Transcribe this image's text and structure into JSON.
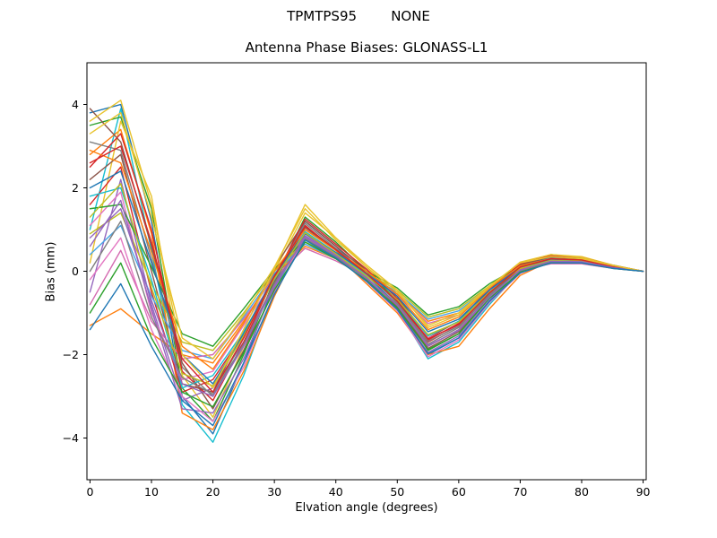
{
  "chart_data": {
    "type": "line",
    "suptitle": "TPMTPS95        NONE",
    "title": "Antenna Phase Biases: GLONASS-L1",
    "xlabel": "Elvation angle (degrees)",
    "ylabel": "Bias (mm)",
    "xlim": [
      -0.5,
      90.5
    ],
    "ylim": [
      -5,
      5
    ],
    "xticks": [
      0,
      10,
      20,
      30,
      40,
      50,
      60,
      70,
      80,
      90
    ],
    "yticks": [
      -4,
      -2,
      0,
      2,
      4
    ],
    "grid": false,
    "legend_position": "none",
    "x": [
      0,
      5,
      10,
      15,
      20,
      25,
      30,
      35,
      40,
      45,
      50,
      55,
      60,
      65,
      70,
      75,
      80,
      85,
      90
    ],
    "series": [
      {
        "color": "#1f77b4",
        "values": [
          3.8,
          4.0,
          1.2,
          -3.0,
          -3.9,
          -2.2,
          -0.3,
          1.2,
          0.6,
          -0.1,
          -0.8,
          -2.0,
          -1.6,
          -0.7,
          0.1,
          0.35,
          0.3,
          0.12,
          0
        ]
      },
      {
        "color": "#17becf",
        "values": [
          1.0,
          3.9,
          0.5,
          -3.2,
          -4.1,
          -2.5,
          -0.5,
          1.0,
          0.5,
          -0.2,
          -0.9,
          -2.1,
          -1.7,
          -0.8,
          0,
          0.3,
          0.28,
          0.1,
          0
        ]
      },
      {
        "color": "#2ca02c",
        "values": [
          3.5,
          3.7,
          1.5,
          -2.8,
          -3.6,
          -2.0,
          -0.2,
          1.3,
          0.7,
          0,
          -0.7,
          -1.9,
          -1.5,
          -0.6,
          0.15,
          0.4,
          0.32,
          0.15,
          0
        ]
      },
      {
        "color": "#ff7f0e",
        "values": [
          2.8,
          3.4,
          0.9,
          -3.4,
          -3.8,
          -2.4,
          -0.6,
          0.9,
          0.4,
          -0.3,
          -1.0,
          -2.0,
          -1.8,
          -0.9,
          -0.1,
          0.25,
          0.25,
          0.1,
          0
        ]
      },
      {
        "color": "#e8c32e",
        "values": [
          0.2,
          3.6,
          1.8,
          -2.5,
          -3.5,
          -1.8,
          0,
          1.4,
          0.8,
          0.1,
          -0.6,
          -1.8,
          -1.4,
          -0.5,
          0.2,
          0.4,
          0.35,
          0.15,
          0
        ]
      },
      {
        "color": "#d62728",
        "values": [
          1.6,
          2.5,
          -0.5,
          -2.9,
          -2.6,
          -1.5,
          -0.1,
          1.1,
          0.5,
          -0.1,
          -0.7,
          -1.7,
          -1.3,
          -0.5,
          0.1,
          0.3,
          0.3,
          0.12,
          0
        ]
      },
      {
        "color": "#9467bd",
        "values": [
          -0.5,
          2.2,
          -0.8,
          -3.1,
          -2.8,
          -1.7,
          -0.3,
          0.9,
          0.4,
          -0.2,
          -0.8,
          -1.8,
          -1.4,
          -0.6,
          0.05,
          0.28,
          0.26,
          0.1,
          0
        ]
      },
      {
        "color": "#8c564b",
        "values": [
          2.2,
          2.8,
          0,
          -2.7,
          -2.9,
          -1.4,
          0.1,
          1.2,
          0.6,
          0,
          -0.6,
          -1.6,
          -1.2,
          -0.4,
          0.15,
          0.35,
          0.3,
          0.13,
          0
        ]
      },
      {
        "color": "#e377c2",
        "values": [
          1.1,
          1.9,
          -1.0,
          -2.6,
          -2.4,
          -1.3,
          -0.2,
          1.0,
          0.5,
          -0.1,
          -0.7,
          -1.6,
          -1.3,
          -0.5,
          0.1,
          0.3,
          0.28,
          0.1,
          0
        ]
      },
      {
        "color": "#7f7f7f",
        "values": [
          3.1,
          2.9,
          0.3,
          -2.3,
          -3.0,
          -1.6,
          -0.1,
          1.15,
          0.55,
          -0.05,
          -0.75,
          -1.75,
          -1.35,
          -0.55,
          0.1,
          0.32,
          0.3,
          0.12,
          0
        ]
      },
      {
        "color": "#bcbd22",
        "values": [
          0.9,
          1.4,
          -0.3,
          -1.7,
          -1.9,
          -1.0,
          0,
          0.7,
          0.35,
          -0.05,
          -0.45,
          -1.1,
          -0.9,
          -0.35,
          0.1,
          0.25,
          0.22,
          0.1,
          0
        ]
      },
      {
        "color": "#ff7f0e",
        "values": [
          -1.3,
          -0.9,
          -1.5,
          -2.0,
          -2.2,
          -1.2,
          -0.1,
          0.6,
          0.3,
          -0.1,
          -0.5,
          -1.2,
          -1.0,
          -0.4,
          0.05,
          0.2,
          0.2,
          0.08,
          0
        ]
      },
      {
        "color": "#46a5e5",
        "values": [
          0.4,
          1.1,
          -0.6,
          -1.9,
          -2.1,
          -1.1,
          -0.05,
          0.65,
          0.3,
          -0.08,
          -0.5,
          -1.15,
          -0.95,
          -0.38,
          0.08,
          0.22,
          0.2,
          0.09,
          0
        ]
      },
      {
        "color": "#2ca02c",
        "values": [
          1.5,
          1.6,
          0.1,
          -1.5,
          -1.8,
          -0.9,
          0.05,
          0.75,
          0.4,
          0,
          -0.4,
          -1.05,
          -0.85,
          -0.3,
          0.12,
          0.27,
          0.24,
          0.1,
          0
        ]
      },
      {
        "color": "#d46ab0",
        "values": [
          -0.8,
          0.5,
          -1.2,
          -2.1,
          -2.0,
          -1.15,
          -0.15,
          0.55,
          0.25,
          -0.12,
          -0.55,
          -1.25,
          -1.05,
          -0.42,
          0.03,
          0.18,
          0.18,
          0.07,
          0
        ]
      },
      {
        "color": "#8c564b",
        "values": [
          3.9,
          3.1,
          0.6,
          -2.2,
          -3.3,
          -1.9,
          -0.25,
          1.05,
          0.5,
          -0.15,
          -0.85,
          -1.85,
          -1.45,
          -0.6,
          0.08,
          0.3,
          0.28,
          0.11,
          0
        ]
      },
      {
        "color": "#d62728",
        "values": [
          2.5,
          3.3,
          1.0,
          -2.4,
          -3.1,
          -1.7,
          -0.15,
          1.25,
          0.65,
          0.05,
          -0.65,
          -1.65,
          -1.25,
          -0.45,
          0.18,
          0.38,
          0.33,
          0.14,
          0
        ]
      },
      {
        "color": "#17becf",
        "values": [
          1.8,
          2.0,
          -0.2,
          -2.8,
          -2.5,
          -1.45,
          -0.2,
          0.95,
          0.45,
          -0.1,
          -0.7,
          -1.55,
          -1.2,
          -0.5,
          0.1,
          0.28,
          0.26,
          0.1,
          0
        ]
      },
      {
        "color": "#9467bd",
        "values": [
          0.6,
          1.7,
          -0.9,
          -3.3,
          -3.4,
          -2.1,
          -0.4,
          0.85,
          0.4,
          -0.2,
          -0.9,
          -1.95,
          -1.55,
          -0.7,
          0,
          0.25,
          0.24,
          0.09,
          0
        ]
      },
      {
        "color": "#e377c2",
        "values": [
          -0.2,
          0.8,
          -1.4,
          -3.0,
          -3.6,
          -2.3,
          -0.5,
          0.8,
          0.35,
          -0.25,
          -0.95,
          -2.05,
          -1.65,
          -0.75,
          -0.05,
          0.22,
          0.22,
          0.08,
          0
        ]
      },
      {
        "color": "#1f77b4",
        "values": [
          2.0,
          2.4,
          0.2,
          -2.0,
          -2.7,
          -1.5,
          -0.1,
          0.9,
          0.45,
          -0.05,
          -0.6,
          -1.45,
          -1.15,
          -0.45,
          0.1,
          0.28,
          0.25,
          0.1,
          0
        ]
      },
      {
        "color": "#bcbd22",
        "values": [
          1.3,
          2.1,
          -0.4,
          -2.45,
          -2.75,
          -1.55,
          -0.18,
          0.92,
          0.42,
          -0.12,
          -0.68,
          -1.52,
          -1.22,
          -0.5,
          0.07,
          0.26,
          0.24,
          0.1,
          0
        ]
      },
      {
        "color": "#7f7f7f",
        "values": [
          0,
          1.2,
          -1.1,
          -2.55,
          -2.95,
          -1.75,
          -0.3,
          0.78,
          0.35,
          -0.18,
          -0.78,
          -1.68,
          -1.32,
          -0.58,
          0.02,
          0.22,
          0.21,
          0.08,
          0
        ]
      },
      {
        "color": "#ff7f0e",
        "values": [
          2.9,
          2.6,
          0.45,
          -1.8,
          -2.35,
          -1.25,
          0,
          1.0,
          0.5,
          0,
          -0.55,
          -1.4,
          -1.1,
          -0.4,
          0.13,
          0.3,
          0.27,
          0.11,
          0
        ]
      },
      {
        "color": "#e8c32e",
        "values": [
          3.3,
          3.8,
          1.3,
          -1.6,
          -2.1,
          -1.05,
          0.1,
          1.5,
          0.75,
          0.1,
          -0.5,
          -1.3,
          -1.0,
          -0.35,
          0.2,
          0.35,
          0.3,
          0.13,
          0
        ]
      },
      {
        "color": "#2ca02c",
        "values": [
          -1.0,
          0.2,
          -1.6,
          -2.9,
          -3.25,
          -1.95,
          -0.45,
          0.7,
          0.3,
          -0.22,
          -0.88,
          -1.88,
          -1.5,
          -0.65,
          -0.02,
          0.2,
          0.2,
          0.07,
          0
        ]
      },
      {
        "color": "#d62728",
        "values": [
          2.6,
          3.0,
          0.7,
          -2.1,
          -2.9,
          -1.6,
          -0.12,
          1.08,
          0.52,
          -0.06,
          -0.72,
          -1.62,
          -1.28,
          -0.52,
          0.1,
          0.3,
          0.27,
          0.11,
          0
        ]
      },
      {
        "color": "#9467bd",
        "values": [
          0.8,
          1.5,
          -0.7,
          -2.7,
          -3.0,
          -1.8,
          -0.35,
          0.82,
          0.38,
          -0.16,
          -0.82,
          -1.78,
          -1.42,
          -0.62,
          0.03,
          0.24,
          0.23,
          0.09,
          0
        ]
      },
      {
        "color": "#e8c32e",
        "values": [
          3.6,
          4.1,
          1.6,
          -2.0,
          -2.8,
          -1.4,
          0.05,
          1.6,
          0.8,
          0.15,
          -0.45,
          -1.35,
          -1.05,
          -0.38,
          0.22,
          0.4,
          0.33,
          0.14,
          0
        ]
      },
      {
        "color": "#1f77b4",
        "values": [
          -1.4,
          -0.3,
          -1.8,
          -3.1,
          -3.7,
          -2.2,
          -0.55,
          0.75,
          0.32,
          -0.24,
          -0.92,
          -1.98,
          -1.6,
          -0.72,
          -0.04,
          0.2,
          0.2,
          0.07,
          0
        ]
      }
    ]
  }
}
